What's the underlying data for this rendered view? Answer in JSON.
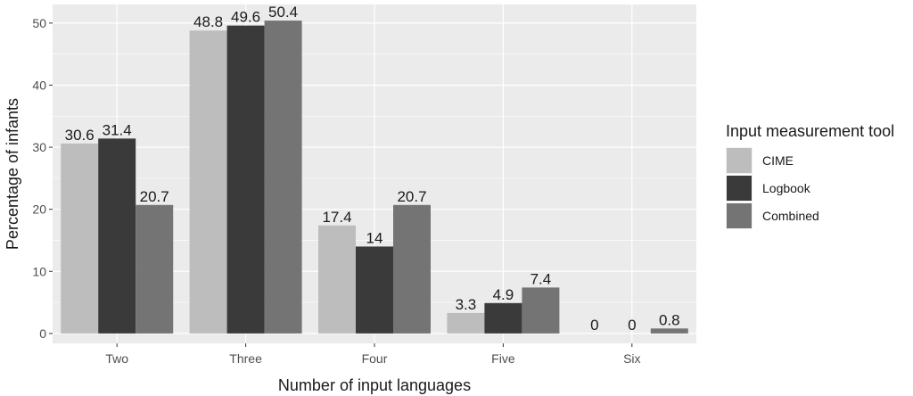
{
  "chart_data": {
    "type": "bar",
    "title": "",
    "xlabel": "Number of input languages",
    "ylabel": "Percentage of infants",
    "categories": [
      "Two",
      "Three",
      "Four",
      "Five",
      "Six"
    ],
    "series": [
      {
        "name": "CIME",
        "values": [
          30.6,
          48.8,
          17.4,
          3.3,
          0
        ],
        "color": "#bdbdbd"
      },
      {
        "name": "Logbook",
        "values": [
          31.4,
          49.6,
          14,
          4.9,
          0
        ],
        "color": "#3a3a3a"
      },
      {
        "name": "Combined",
        "values": [
          20.7,
          50.4,
          20.7,
          7.4,
          0.8
        ],
        "color": "#747474"
      }
    ],
    "data_labels": [
      [
        "30.6",
        "48.8",
        "17.4",
        "3.3",
        "0"
      ],
      [
        "31.4",
        "49.6",
        "14",
        "4.9",
        "0"
      ],
      [
        "20.7",
        "50.4",
        "20.7",
        "7.4",
        "0.8"
      ]
    ],
    "ylim": [
      -1.6,
      53
    ],
    "yticks": [
      0,
      10,
      20,
      30,
      40,
      50
    ],
    "grid": true,
    "panel_background": "#ebebeb",
    "legend": {
      "title": "Input measurement tool",
      "placement": "right"
    }
  }
}
